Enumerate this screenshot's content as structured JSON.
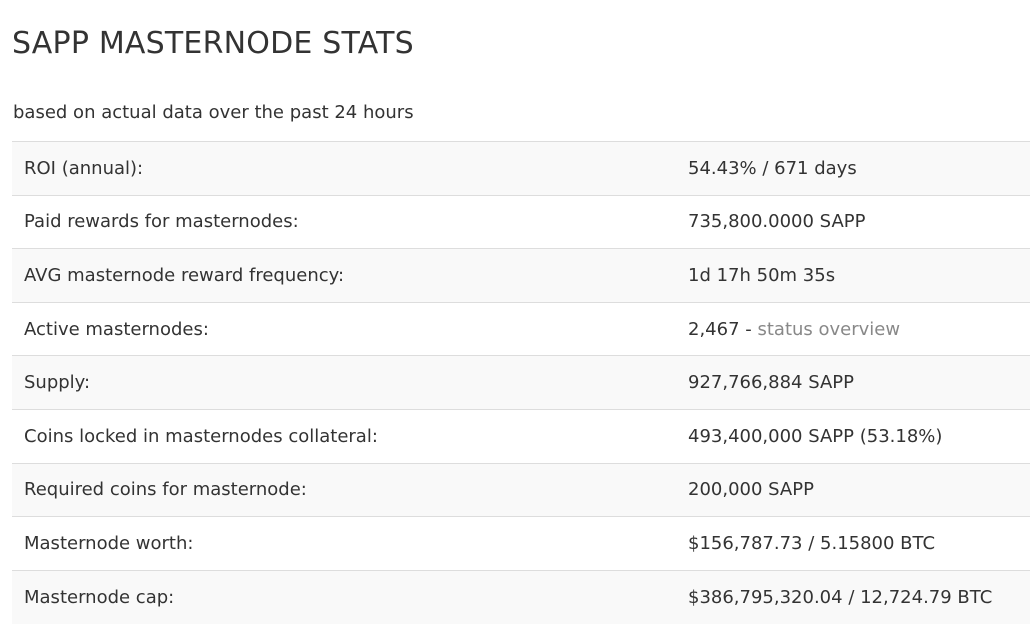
{
  "page": {
    "title": "SAPP MASTERNODE STATS",
    "subtitle": "based on actual data over the past 24 hours"
  },
  "stats": {
    "rows": [
      {
        "label": "ROI (annual):",
        "value": "54.43% / 671 days"
      },
      {
        "label": "Paid rewards for masternodes:",
        "value": "735,800.0000 SAPP"
      },
      {
        "label": "AVG masternode reward frequency:",
        "value": "1d 17h 50m 35s"
      },
      {
        "label": "Active masternodes:",
        "value": "2,467",
        "separator": " - ",
        "link": "status overview"
      },
      {
        "label": "Supply:",
        "value": "927,766,884 SAPP"
      },
      {
        "label": "Coins locked in masternodes collateral:",
        "value": "493,400,000 SAPP (53.18%)"
      },
      {
        "label": "Required coins for masternode:",
        "value": "200,000 SAPP"
      },
      {
        "label": "Masternode worth:",
        "value": "$156,787.73 / 5.15800 BTC"
      },
      {
        "label": "Masternode cap:",
        "value": "$386,795,320.04 / 12,724.79 BTC"
      }
    ]
  },
  "colors": {
    "text": "#333333",
    "link": "#888888",
    "row_stripe": "#f9f9f9",
    "border": "#dddddd"
  }
}
